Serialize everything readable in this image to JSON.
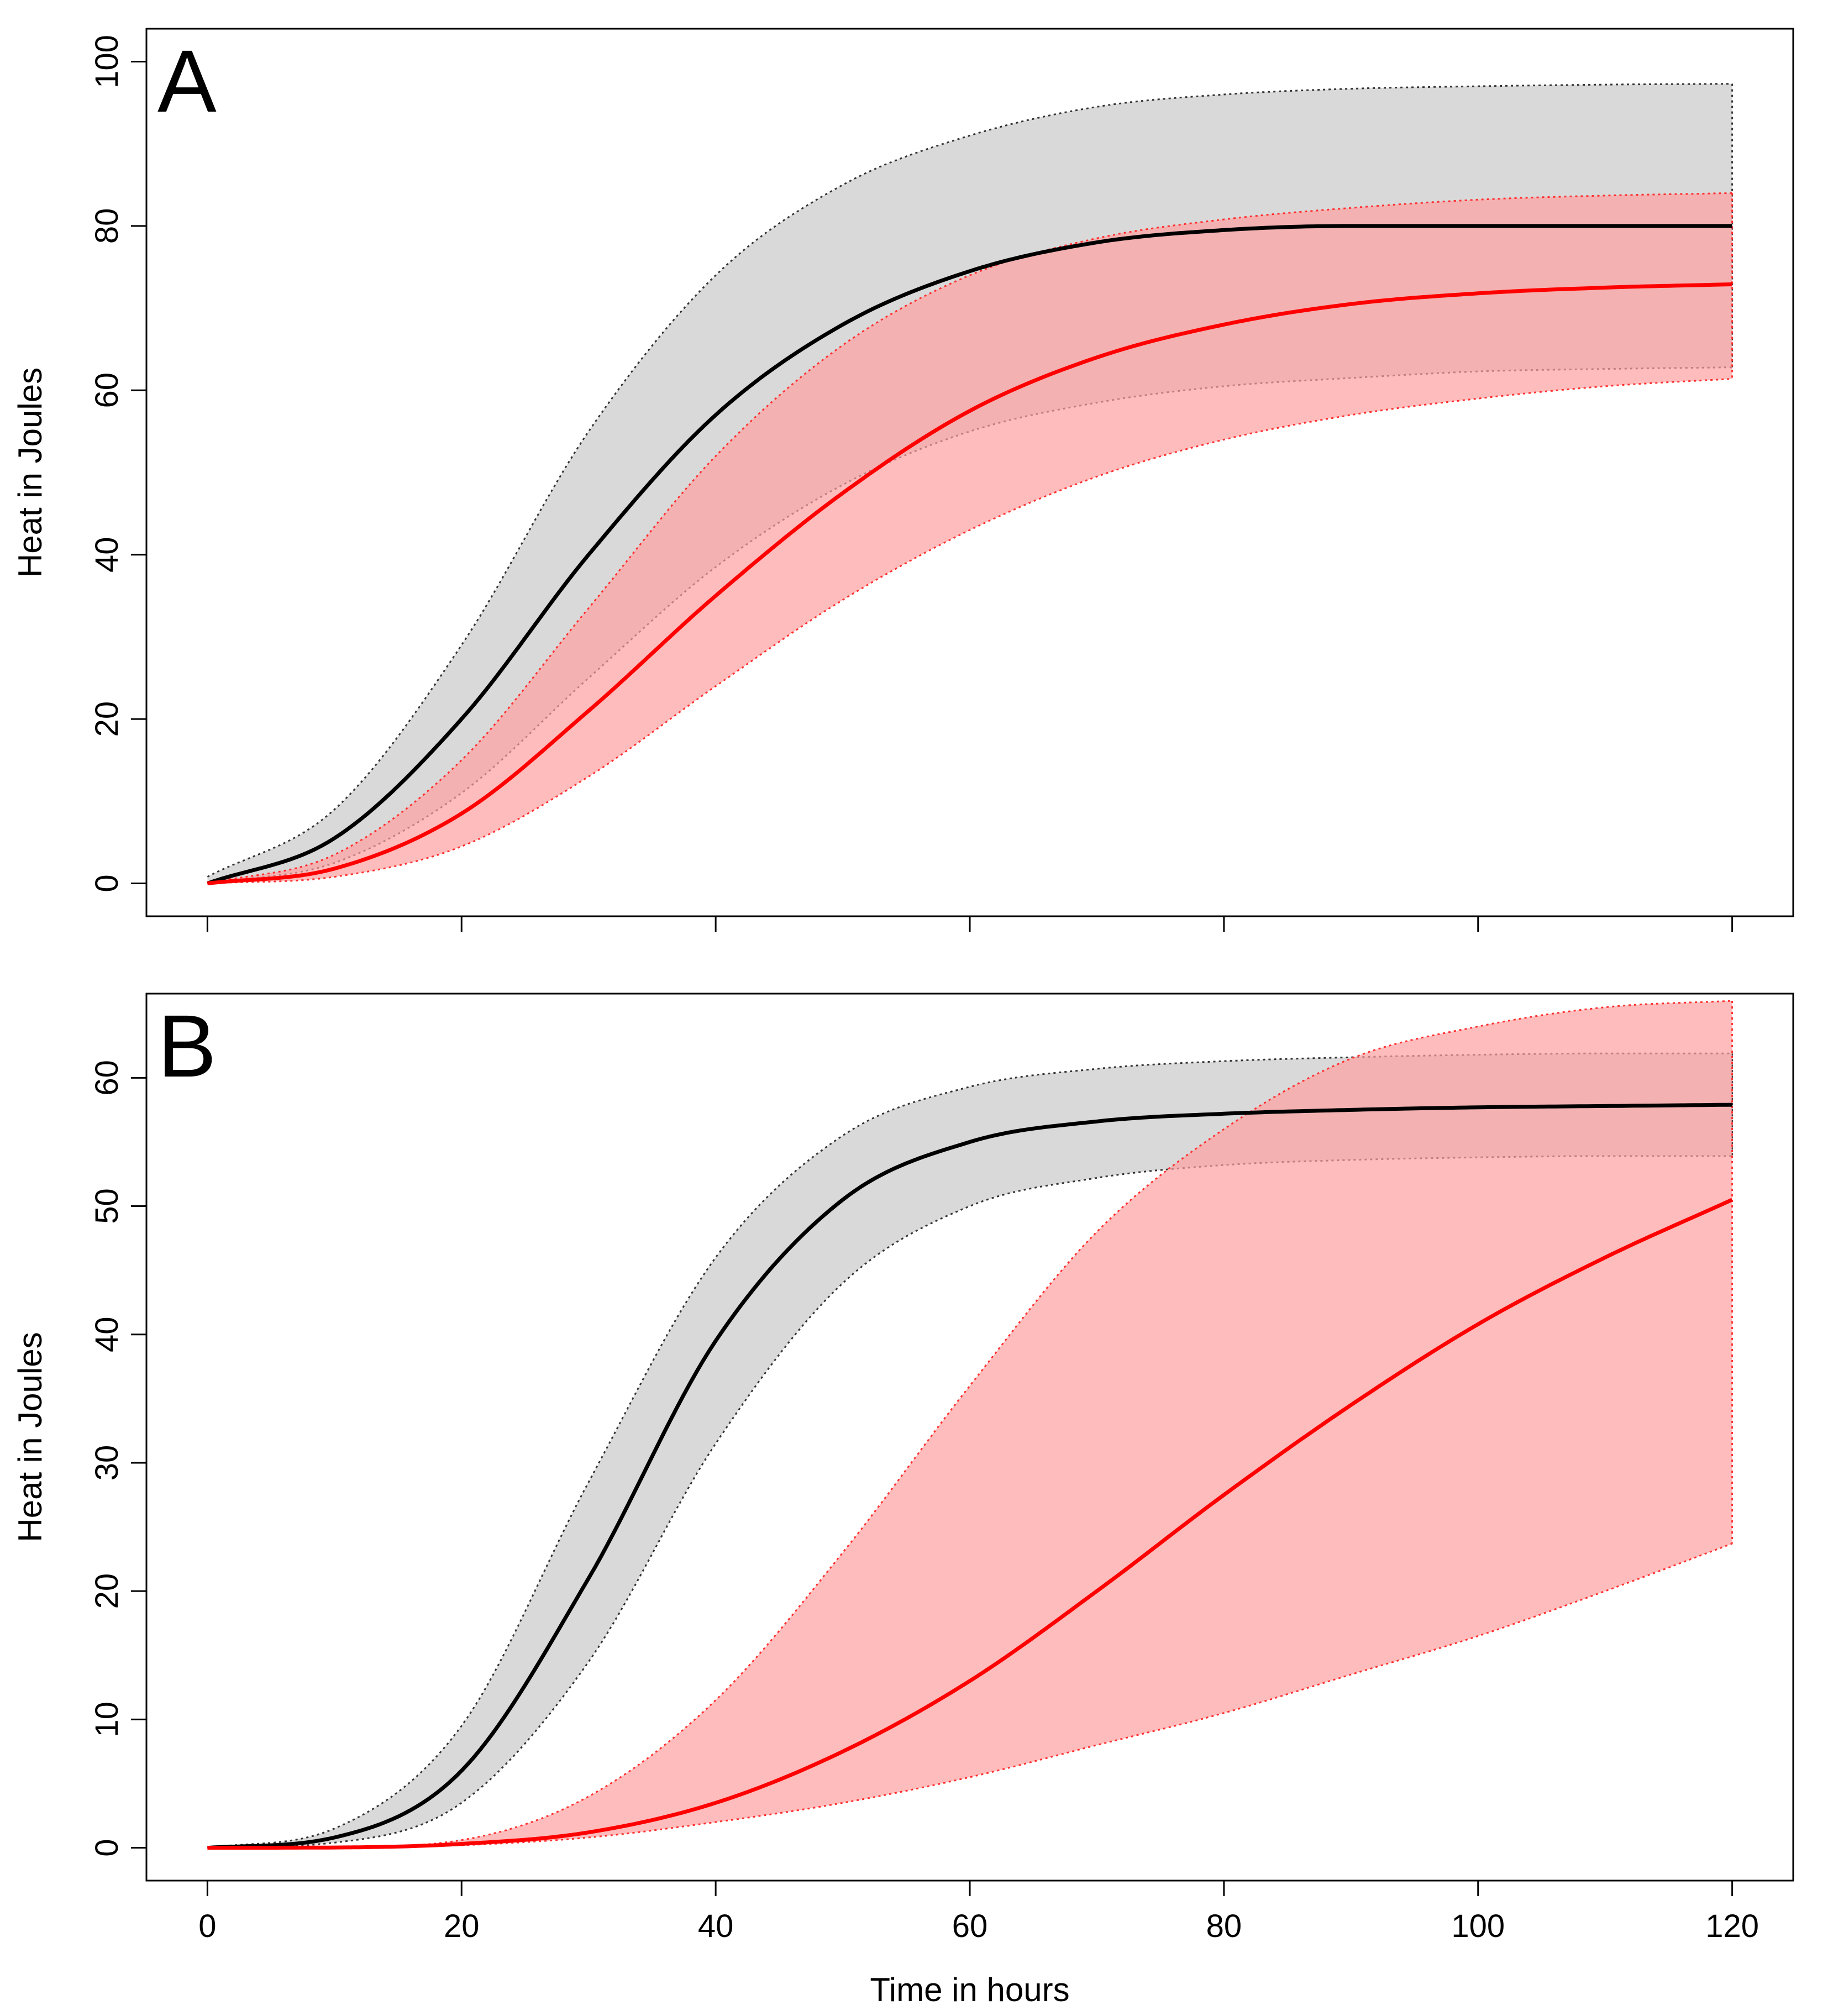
{
  "chart_data": [
    {
      "type": "line",
      "panel_label": "A",
      "xlabel": "",
      "ylabel": "Heat in Joules",
      "xlim": [
        0,
        120
      ],
      "ylim": [
        0,
        100
      ],
      "x_ticks": [
        0,
        20,
        40,
        60,
        80,
        100,
        120
      ],
      "x_tick_labels": [
        "",
        "",
        "",
        "",
        "",
        "",
        ""
      ],
      "y_ticks": [
        0,
        20,
        40,
        60,
        80,
        100
      ],
      "y_tick_labels": [
        "0",
        "20",
        "40",
        "60",
        "80",
        "100"
      ],
      "grid": false,
      "legend": "none",
      "series": [
        {
          "name": "black",
          "color": "#000000",
          "band_fill": "#d9d9d9",
          "model": "weibull-cdf",
          "x": [
            0,
            10,
            20,
            30,
            40,
            50,
            60,
            70,
            80,
            90,
            100,
            110,
            120
          ],
          "mean": [
            0,
            5.5,
            20,
            40,
            57,
            68,
            74.5,
            78,
            79.5,
            80,
            80,
            80,
            80
          ],
          "lower": [
            0,
            2.5,
            11,
            25,
            38.5,
            48.5,
            55,
            58.5,
            60.5,
            61.5,
            62.3,
            62.6,
            62.8
          ],
          "upper": [
            0.8,
            9,
            29,
            55,
            74,
            85,
            91,
            94.5,
            96,
            96.7,
            97,
            97.2,
            97.3
          ]
        },
        {
          "name": "red",
          "color": "#ff0000",
          "band_fill": "#ffa0a0",
          "model": "weibull-cdf",
          "x": [
            0,
            10,
            20,
            30,
            40,
            50,
            60,
            70,
            80,
            90,
            100,
            110,
            120
          ],
          "mean": [
            0,
            1.8,
            8.5,
            21,
            35,
            47.5,
            57.5,
            64,
            68,
            70.5,
            71.8,
            72.5,
            72.9
          ],
          "lower": [
            0,
            0.8,
            4.5,
            13,
            24,
            34.5,
            43,
            49.5,
            54,
            57,
            59,
            60.5,
            61.4
          ],
          "upper": [
            0,
            3.5,
            15,
            33.5,
            52,
            65.5,
            74,
            78.5,
            80.8,
            82.2,
            83.2,
            83.7,
            84
          ]
        }
      ]
    },
    {
      "type": "line",
      "panel_label": "B",
      "xlabel": "Time in hours",
      "ylabel": "Heat in Joules",
      "xlim": [
        0,
        120
      ],
      "ylim": [
        0,
        64
      ],
      "x_ticks": [
        0,
        20,
        40,
        60,
        80,
        100,
        120
      ],
      "x_tick_labels": [
        "0",
        "20",
        "40",
        "60",
        "80",
        "100",
        "120"
      ],
      "y_ticks": [
        0,
        10,
        20,
        30,
        40,
        50,
        60
      ],
      "y_tick_labels": [
        "0",
        "10",
        "20",
        "30",
        "40",
        "50",
        "60"
      ],
      "grid": false,
      "legend": "none",
      "series": [
        {
          "name": "black",
          "color": "#000000",
          "band_fill": "#d9d9d9",
          "model": "weibull-cdf",
          "x": [
            0,
            10,
            20,
            30,
            40,
            50,
            60,
            70,
            80,
            90,
            100,
            110,
            120
          ],
          "mean": [
            0,
            0.8,
            6,
            21,
            39.5,
            50.5,
            55,
            56.6,
            57.2,
            57.5,
            57.7,
            57.8,
            57.9
          ],
          "lower": [
            0,
            0.4,
            3.5,
            14.5,
            31.5,
            44,
            50,
            52.2,
            53.2,
            53.6,
            53.8,
            53.9,
            53.9
          ],
          "upper": [
            0,
            1.5,
            9.5,
            28.5,
            46,
            55.5,
            59.3,
            60.7,
            61.3,
            61.6,
            61.8,
            61.9,
            61.9
          ]
        },
        {
          "name": "red",
          "color": "#ff0000",
          "band_fill": "#ffa0a0",
          "model": "weibull-cdf",
          "x": [
            0,
            10,
            20,
            30,
            40,
            50,
            60,
            70,
            80,
            90,
            100,
            110,
            120
          ],
          "mean": [
            0,
            0.02,
            0.3,
            1.2,
            3.5,
            7.5,
            13,
            20,
            27.5,
            34.5,
            40.8,
            46,
            50.5
          ],
          "lower": [
            0,
            0.02,
            0.2,
            0.8,
            2,
            3.5,
            5.5,
            8,
            10.5,
            13.5,
            16.5,
            20,
            23.7
          ],
          "upper": [
            0,
            0.05,
            0.6,
            4,
            11.5,
            23,
            36,
            48,
            56,
            61.5,
            64,
            65.5,
            66
          ]
        }
      ]
    }
  ]
}
